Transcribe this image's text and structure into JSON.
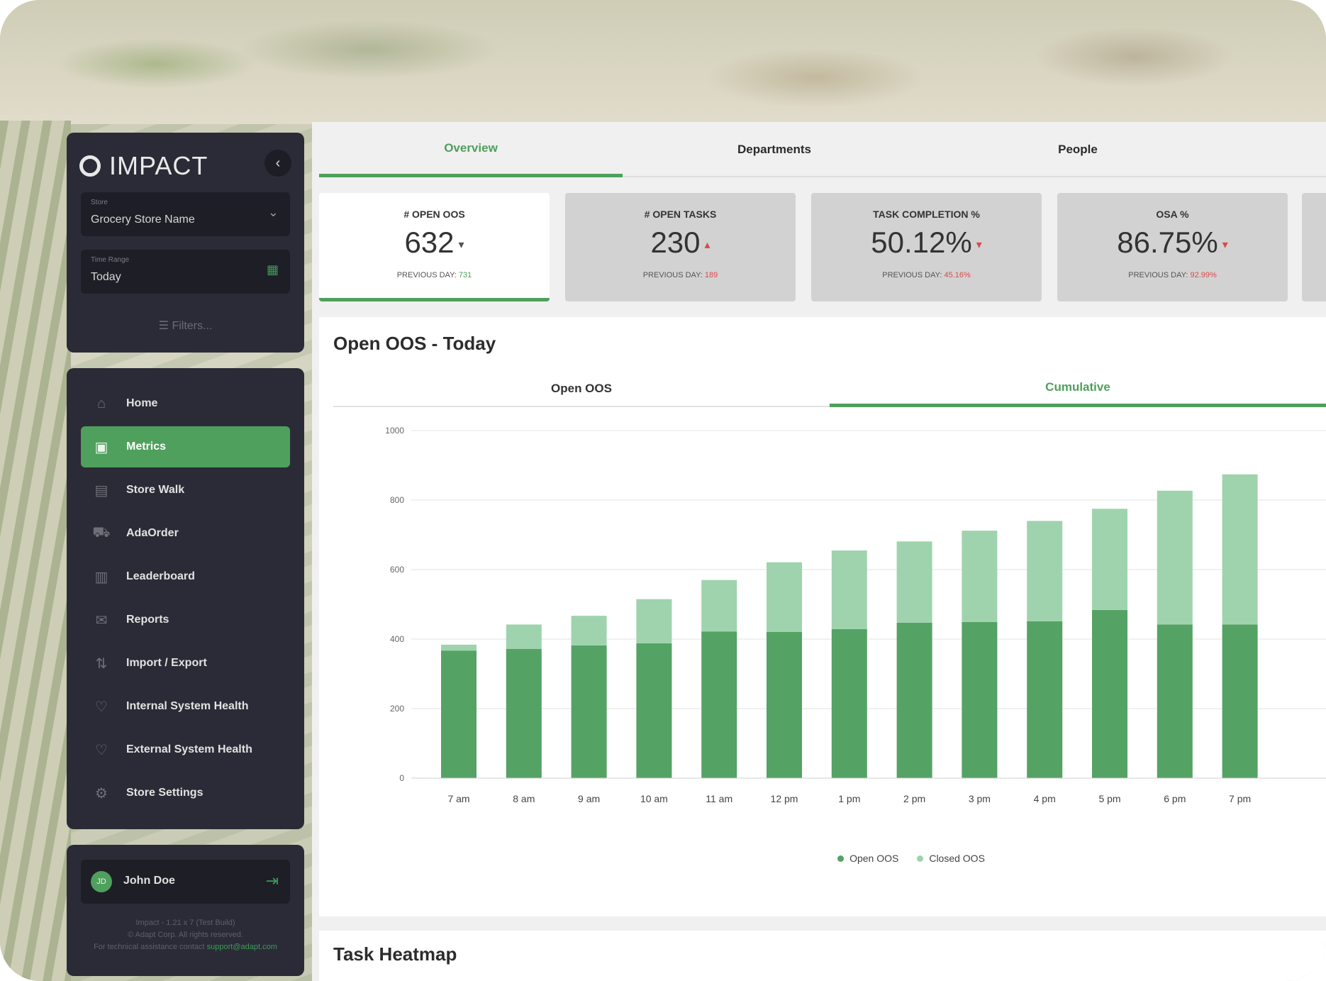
{
  "app": {
    "name": "IMPACT"
  },
  "filters": {
    "store_label": "Store",
    "store_value": "Grocery Store Name",
    "time_label": "Time Range",
    "time_value": "Today",
    "filters_button": "Filters..."
  },
  "nav": {
    "items": [
      {
        "label": "Home",
        "icon": "home-icon"
      },
      {
        "label": "Metrics",
        "icon": "metrics-icon",
        "active": true
      },
      {
        "label": "Store Walk",
        "icon": "store-walk-icon"
      },
      {
        "label": "AdaOrder",
        "icon": "cart-icon"
      },
      {
        "label": "Leaderboard",
        "icon": "leaderboard-icon"
      },
      {
        "label": "Reports",
        "icon": "reports-icon"
      },
      {
        "label": "Import / Export",
        "icon": "import-export-icon"
      },
      {
        "label": "Internal System Health",
        "icon": "heart-icon"
      },
      {
        "label": "External System Health",
        "icon": "heart-icon"
      },
      {
        "label": "Store Settings",
        "icon": "gear-icon"
      }
    ]
  },
  "user": {
    "initials": "JD",
    "name": "John Doe",
    "footnote_line1": "Impact - 1.21 x 7 (Test Build)",
    "footnote_line2": "© Adapt Corp. All rights reserved.",
    "footnote_line3": "For technical assistance contact",
    "footnote_link": "support@adapt.com"
  },
  "tabs": [
    {
      "label": "Overview",
      "active": true
    },
    {
      "label": "Departments"
    },
    {
      "label": "People"
    }
  ],
  "kpis": [
    {
      "label": "# OPEN OOS",
      "value": "632",
      "prev_label": "PREVIOUS DAY:",
      "prev_value": "731",
      "active": true,
      "prev_color": "green"
    },
    {
      "label": "# OPEN TASKS",
      "value": "230",
      "prev_label": "PREVIOUS DAY:",
      "prev_value": "189"
    },
    {
      "label": "TASK COMPLETION %",
      "value": "50.12%",
      "prev_label": "PREVIOUS DAY:",
      "prev_value": "45.16%"
    },
    {
      "label": "OSA %",
      "value": "86.75%",
      "prev_label": "PREVIOUS DAY:",
      "prev_value": "92.99%"
    }
  ],
  "chart_section": {
    "title": "Open OOS - Today",
    "subtabs": [
      {
        "label": "Open OOS"
      },
      {
        "label": "Cumulative",
        "active": true
      }
    ]
  },
  "chart_data": {
    "type": "bar",
    "stacked": true,
    "categories": [
      "7 am",
      "8 am",
      "9 am",
      "10 am",
      "11 am",
      "12 pm",
      "1 pm",
      "2 pm",
      "3 pm",
      "4 pm",
      "5 pm",
      "6 pm",
      "7 pm"
    ],
    "series": [
      {
        "name": "Open OOS",
        "color": "#55a265",
        "values": [
          367,
          372,
          382,
          388,
          422,
          421,
          429,
          447,
          449,
          451,
          484,
          442,
          442
        ]
      },
      {
        "name": "Closed OOS",
        "color": "#9fd3ad",
        "values": [
          17,
          70,
          85,
          127,
          148,
          200,
          226,
          234,
          263,
          289,
          291,
          385,
          432
        ]
      }
    ],
    "y_ticks": [
      "0",
      "200",
      "400",
      "600",
      "800",
      "1000"
    ],
    "ylim": [
      0,
      1000
    ],
    "grid": true,
    "legend_position": "bottom"
  },
  "heatmap": {
    "title": "Task Heatmap"
  }
}
